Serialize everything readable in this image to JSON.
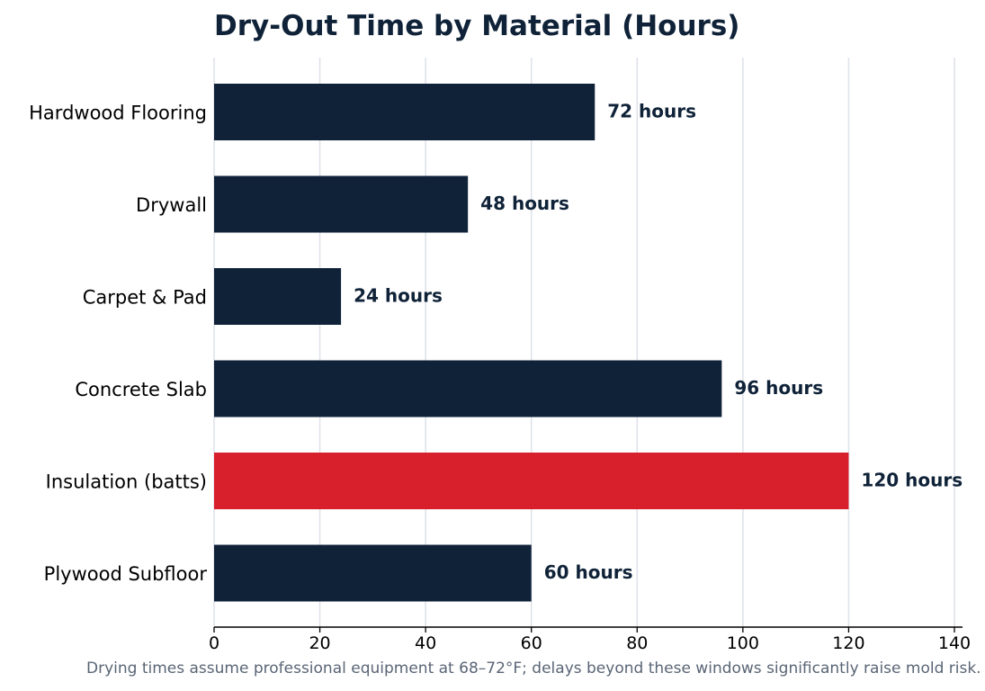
{
  "chart_data": {
    "type": "bar",
    "orientation": "horizontal",
    "title": "Dry-Out Time by Material (Hours)",
    "xlabel": "",
    "ylabel": "",
    "categories": [
      "Hardwood Flooring",
      "Drywall",
      "Carpet & Pad",
      "Concrete Slab",
      "Insulation (batts)",
      "Plywood Subfloor"
    ],
    "values": [
      72,
      48,
      24,
      96,
      120,
      60
    ],
    "value_labels": [
      "72 hours",
      "48 hours",
      "24 hours",
      "96 hours",
      "120 hours",
      "60 hours"
    ],
    "xlim": [
      0,
      140
    ],
    "x_ticks": [
      0,
      20,
      40,
      60,
      80,
      100,
      120,
      140
    ],
    "x_tick_labels": [
      "0",
      "20",
      "40",
      "60",
      "80",
      "100",
      "120",
      "140"
    ],
    "grid": "vertical",
    "legend": "none",
    "highlight_index": 4,
    "colors": {
      "bar": "#0f2238",
      "highlight": "#d7202b",
      "grid": "#dde1ea",
      "axis": "#000000",
      "title": "#0f2238",
      "footnote": "#5a6575"
    },
    "footnote": "Drying times assume professional equipment at 68–72°F; delays beyond these windows significantly raise mold risk."
  }
}
